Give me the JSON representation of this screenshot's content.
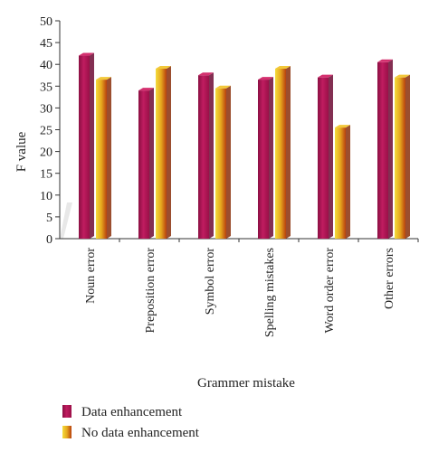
{
  "chart_data": {
    "type": "bar",
    "categories": [
      "Noun error",
      "Preposition error",
      "Symbol error",
      "Spelling mistakes",
      "Word order error",
      "Other errors"
    ],
    "series": [
      {
        "name": "Data enhancement",
        "values": [
          42,
          34,
          37.5,
          36.5,
          37,
          40.5
        ],
        "color": "#b8195a"
      },
      {
        "name": "No data enhancement",
        "values": [
          36.5,
          39,
          34.5,
          39,
          25.5,
          37
        ],
        "color": "#e0a020"
      }
    ],
    "xlabel": "Grammer mistake",
    "ylabel": "F value",
    "ylim": [
      0,
      50
    ],
    "yticks": [
      0,
      5,
      10,
      15,
      20,
      25,
      30,
      35,
      40,
      45,
      50
    ],
    "grid": false,
    "legend_position": "bottom-left",
    "style": "3d"
  }
}
